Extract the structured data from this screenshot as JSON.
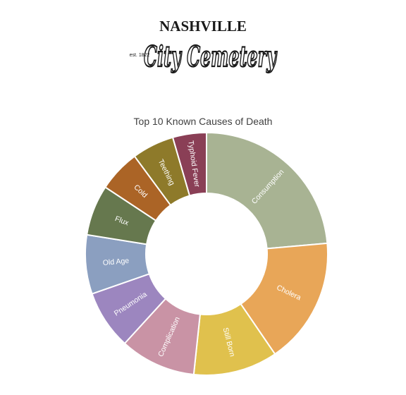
{
  "logo": {
    "top_text": "NASHVILLE",
    "main_text": "City Cemetery",
    "est_text": "est. 1822"
  },
  "chart_data": {
    "type": "pie",
    "style": "donut",
    "title": "Top 10 Known Causes of Death",
    "legend": "none",
    "start_angle_deg": 0,
    "direction": "clockwise",
    "categories": [
      "Consumption",
      "Cholera",
      "Still Born",
      "Complication",
      "Pneumonia",
      "Old Age",
      "Flux",
      "Cold",
      "Teething",
      "Typhoid Fever"
    ],
    "values": [
      21,
      15,
      10,
      9,
      7,
      7,
      6,
      5,
      5,
      4
    ],
    "colors": [
      "#a8b393",
      "#e8a658",
      "#e0c14d",
      "#c993a5",
      "#9c86bf",
      "#8b9fc0",
      "#66784e",
      "#ab6426",
      "#8e7a2a",
      "#8a3f56"
    ]
  }
}
